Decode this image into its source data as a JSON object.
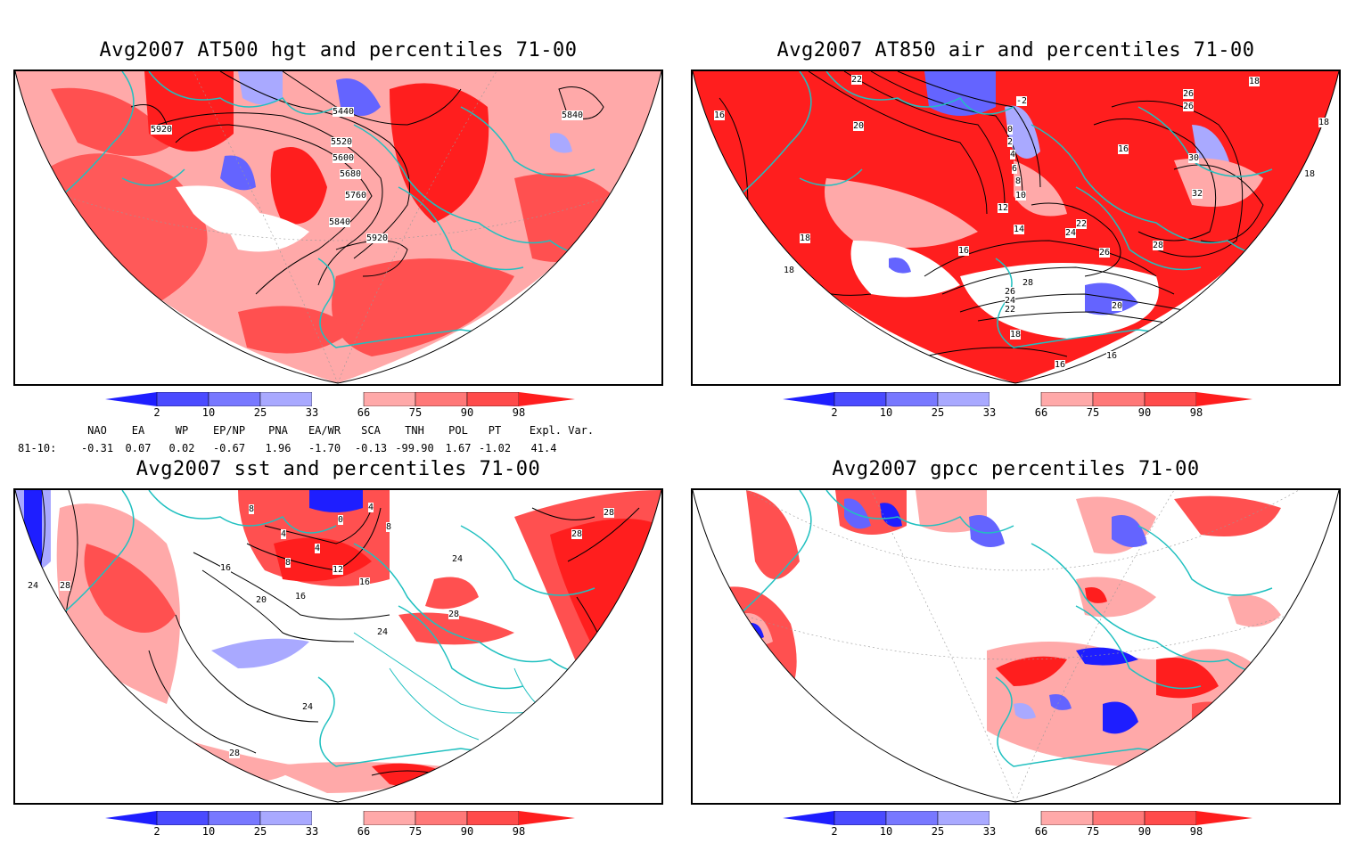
{
  "panels": [
    {
      "title": "Avg2007 AT500 hgt and percentiles 71-00",
      "contour_labels": [
        "5920",
        "5440",
        "5840",
        "5520",
        "5600",
        "5680",
        "5760",
        "5840",
        "5920"
      ]
    },
    {
      "title": "Avg2007 AT850 air and percentiles 71-00",
      "contour_labels": [
        "22",
        "-2",
        "26",
        "18",
        "16",
        "20",
        "0",
        "2",
        "4",
        "6",
        "8",
        "10",
        "12",
        "14",
        "22",
        "24",
        "16",
        "26",
        "30",
        "32",
        "18",
        "18",
        "28",
        "26",
        "28",
        "26",
        "24",
        "22",
        "20",
        "18",
        "16",
        "16",
        "16",
        "18",
        "18"
      ]
    },
    {
      "title": "Avg2007 sst and percentiles 71-00",
      "contour_labels": [
        "8",
        "4",
        "0",
        "4",
        "8",
        "4",
        "8",
        "12",
        "16",
        "16",
        "20",
        "16",
        "24",
        "28",
        "24",
        "28",
        "28",
        "28",
        "24",
        "28",
        "24"
      ]
    },
    {
      "title": "Avg2007 gpcc percentiles 71-00",
      "contour_labels": []
    }
  ],
  "colorbar": {
    "ticks": [
      "2",
      "10",
      "25",
      "33",
      "66",
      "75",
      "90",
      "98"
    ],
    "colors": [
      "#1e1eff",
      "#4b4bff",
      "#7878ff",
      "#a9a9ff",
      "#ffffff",
      "#ffa9a9",
      "#ff7878",
      "#ff4b4b",
      "#ff1e1e"
    ]
  },
  "indices": {
    "headers": [
      "NAO",
      "EA",
      "WP",
      "EP/NP",
      "PNA",
      "EA/WR",
      "SCA",
      "TNH",
      "POL",
      "PT",
      "Expl. Var."
    ],
    "row_label": "81-10:",
    "values": [
      "-0.31",
      "0.07",
      "0.02",
      "-0.67",
      "1.96",
      "-1.70",
      "-0.13",
      "-99.90",
      "1.67",
      "-1.02",
      "41.4"
    ]
  },
  "colors": {
    "land_outline": "#20c0c0",
    "shade_red_dark": "#ff1e1e",
    "shade_red_mid": "#ff5050",
    "shade_red_light": "#ffa9a9",
    "shade_blue_dark": "#1e1eff",
    "shade_blue_mid": "#6464ff",
    "shade_blue_light": "#a9a9ff"
  }
}
